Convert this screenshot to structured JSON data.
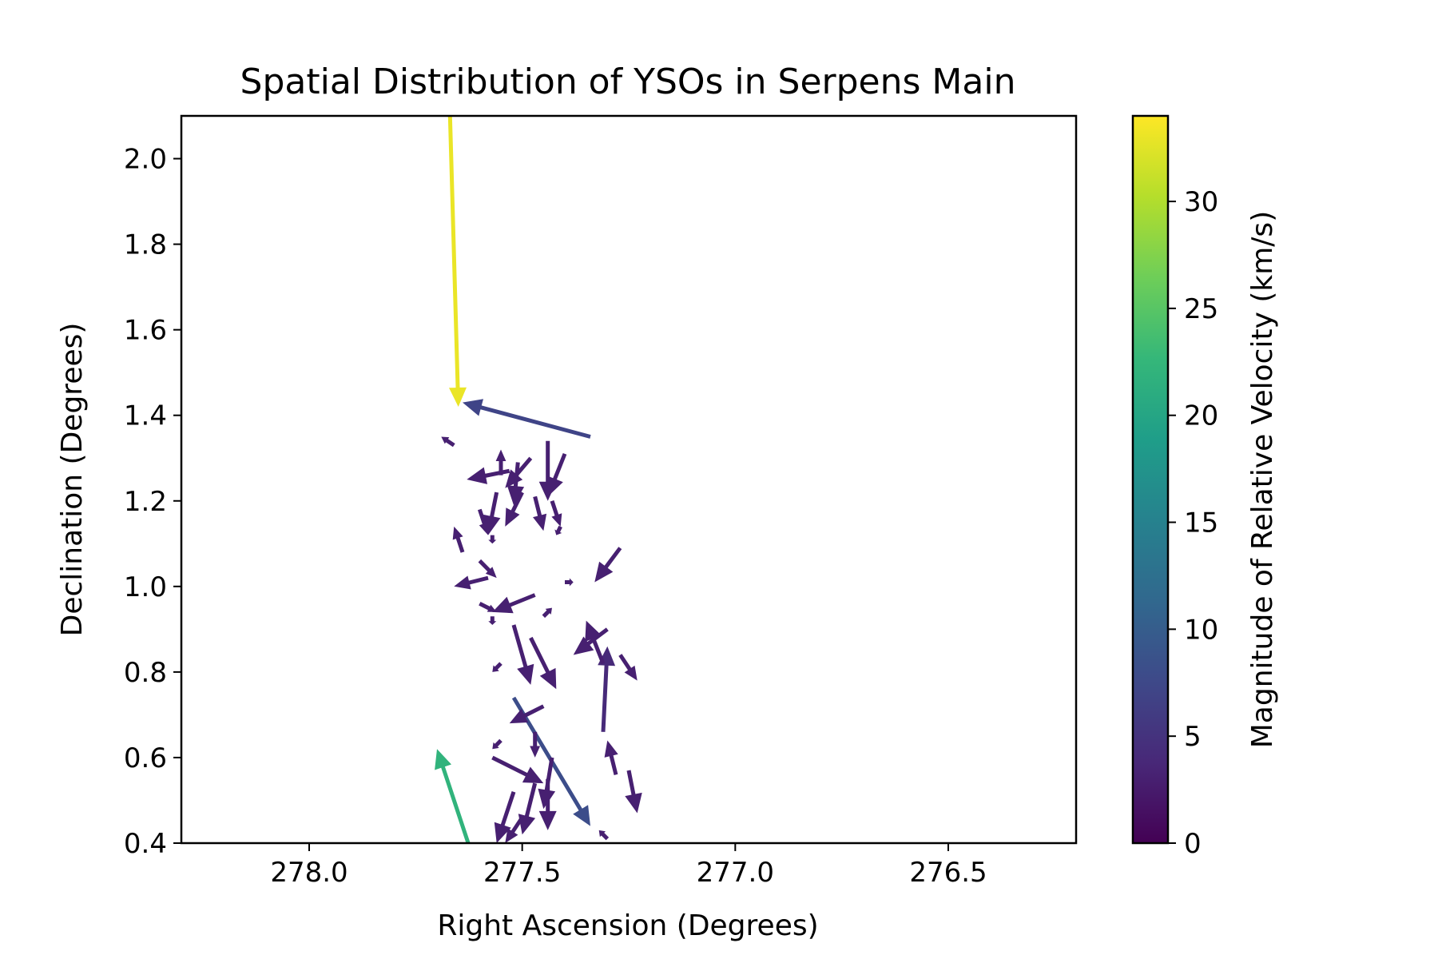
{
  "chart_data": {
    "type": "quiver",
    "title": "Spatial Distribution of YSOs in Serpens Main",
    "xlabel": "Right Ascension (Degrees)",
    "ylabel": "Declination (Degrees)",
    "xlim": [
      278.3,
      276.2
    ],
    "ylim": [
      0.4,
      2.1
    ],
    "x_inverted": true,
    "xticks": [
      "278.0",
      "277.5",
      "277.0",
      "276.5"
    ],
    "xtick_values": [
      278.0,
      277.5,
      277.0,
      276.5
    ],
    "yticks": [
      "0.4",
      "0.6",
      "0.8",
      "1.0",
      "1.2",
      "1.4",
      "1.6",
      "1.8",
      "2.0"
    ],
    "ytick_values": [
      0.4,
      0.6,
      0.8,
      1.0,
      1.2,
      1.4,
      1.6,
      1.8,
      2.0
    ],
    "grid": false,
    "colorbar": {
      "label": "Magnitude of Relative Velocity (km/s)",
      "colormap": "viridis",
      "range": [
        0,
        34
      ],
      "ticks": [
        "0",
        "5",
        "10",
        "15",
        "20",
        "25",
        "30"
      ],
      "tick_values": [
        0,
        5,
        10,
        15,
        20,
        25,
        30
      ],
      "stops": [
        "#440154",
        "#482878",
        "#3e4989",
        "#31688e",
        "#26828e",
        "#1f9e89",
        "#35b779",
        "#6ece58",
        "#b5de2b",
        "#fde725"
      ]
    },
    "arrows": [
      {
        "x": 277.67,
        "y": 2.12,
        "dx": -0.02,
        "dy": -0.7,
        "mag": 33
      },
      {
        "x": 277.34,
        "y": 1.35,
        "dx": 0.3,
        "dy": 0.08,
        "mag": 7
      },
      {
        "x": 277.52,
        "y": 0.74,
        "dx": -0.18,
        "dy": -0.3,
        "mag": 8
      },
      {
        "x": 277.62,
        "y": 0.38,
        "dx": 0.08,
        "dy": 0.24,
        "mag": 22
      },
      {
        "x": 277.31,
        "y": 0.66,
        "dx": -0.01,
        "dy": 0.2,
        "mag": 4
      },
      {
        "x": 277.66,
        "y": 1.33,
        "dx": 0.03,
        "dy": 0.02,
        "mag": 3
      },
      {
        "x": 277.48,
        "y": 1.3,
        "dx": 0.06,
        "dy": -0.07,
        "mag": 3
      },
      {
        "x": 277.53,
        "y": 1.27,
        "dx": 0.1,
        "dy": -0.02,
        "mag": 3
      },
      {
        "x": 277.44,
        "y": 1.34,
        "dx": 0.0,
        "dy": -0.14,
        "mag": 3
      },
      {
        "x": 277.4,
        "y": 1.31,
        "dx": 0.04,
        "dy": -0.1,
        "mag": 3
      },
      {
        "x": 277.5,
        "y": 1.22,
        "dx": 0.04,
        "dy": -0.08,
        "mag": 3
      },
      {
        "x": 277.47,
        "y": 1.21,
        "dx": -0.02,
        "dy": -0.08,
        "mag": 3
      },
      {
        "x": 277.56,
        "y": 1.22,
        "dx": 0.02,
        "dy": -0.1,
        "mag": 3
      },
      {
        "x": 277.51,
        "y": 1.29,
        "dx": 0.01,
        "dy": -0.1,
        "mag": 3
      },
      {
        "x": 277.55,
        "y": 1.26,
        "dx": 0.0,
        "dy": 0.06,
        "mag": 3
      },
      {
        "x": 277.43,
        "y": 1.2,
        "dx": -0.02,
        "dy": -0.06,
        "mag": 3
      },
      {
        "x": 277.41,
        "y": 1.14,
        "dx": 0.01,
        "dy": -0.02,
        "mag": 3
      },
      {
        "x": 277.64,
        "y": 1.08,
        "dx": 0.02,
        "dy": 0.06,
        "mag": 3
      },
      {
        "x": 277.6,
        "y": 1.18,
        "dx": -0.02,
        "dy": -0.06,
        "mag": 3
      },
      {
        "x": 277.57,
        "y": 1.12,
        "dx": 0.0,
        "dy": -0.02,
        "mag": 3
      },
      {
        "x": 277.27,
        "y": 1.09,
        "dx": 0.06,
        "dy": -0.08,
        "mag": 3
      },
      {
        "x": 277.6,
        "y": 1.06,
        "dx": -0.04,
        "dy": -0.04,
        "mag": 3
      },
      {
        "x": 277.58,
        "y": 1.02,
        "dx": 0.08,
        "dy": -0.02,
        "mag": 3
      },
      {
        "x": 277.4,
        "y": 1.01,
        "dx": -0.02,
        "dy": 0.0,
        "mag": 3
      },
      {
        "x": 277.47,
        "y": 0.98,
        "dx": 0.1,
        "dy": -0.04,
        "mag": 3
      },
      {
        "x": 277.6,
        "y": 0.96,
        "dx": -0.04,
        "dy": -0.02,
        "mag": 3
      },
      {
        "x": 277.57,
        "y": 0.93,
        "dx": 0.0,
        "dy": -0.02,
        "mag": 3
      },
      {
        "x": 277.45,
        "y": 0.93,
        "dx": -0.02,
        "dy": 0.02,
        "mag": 3
      },
      {
        "x": 277.3,
        "y": 0.9,
        "dx": 0.08,
        "dy": -0.06,
        "mag": 3
      },
      {
        "x": 277.52,
        "y": 0.91,
        "dx": -0.04,
        "dy": -0.14,
        "mag": 3
      },
      {
        "x": 277.48,
        "y": 0.88,
        "dx": -0.06,
        "dy": -0.12,
        "mag": 3
      },
      {
        "x": 277.55,
        "y": 0.82,
        "dx": 0.02,
        "dy": -0.02,
        "mag": 3
      },
      {
        "x": 277.31,
        "y": 0.82,
        "dx": 0.04,
        "dy": 0.1,
        "mag": 3
      },
      {
        "x": 277.27,
        "y": 0.84,
        "dx": -0.04,
        "dy": -0.06,
        "mag": 3
      },
      {
        "x": 277.45,
        "y": 0.72,
        "dx": 0.08,
        "dy": -0.04,
        "mag": 3
      },
      {
        "x": 277.55,
        "y": 0.64,
        "dx": 0.02,
        "dy": -0.02,
        "mag": 3
      },
      {
        "x": 277.47,
        "y": 0.66,
        "dx": 0.0,
        "dy": -0.06,
        "mag": 3
      },
      {
        "x": 277.43,
        "y": 0.6,
        "dx": 0.02,
        "dy": -0.12,
        "mag": 3
      },
      {
        "x": 277.57,
        "y": 0.6,
        "dx": -0.12,
        "dy": -0.06,
        "mag": 3
      },
      {
        "x": 277.28,
        "y": 0.56,
        "dx": 0.02,
        "dy": 0.08,
        "mag": 3
      },
      {
        "x": 277.25,
        "y": 0.57,
        "dx": -0.02,
        "dy": -0.1,
        "mag": 3
      },
      {
        "x": 277.52,
        "y": 0.52,
        "dx": 0.04,
        "dy": -0.12,
        "mag": 3
      },
      {
        "x": 277.47,
        "y": 0.54,
        "dx": 0.03,
        "dy": -0.12,
        "mag": 3
      },
      {
        "x": 277.44,
        "y": 0.55,
        "dx": 0.0,
        "dy": -0.12,
        "mag": 3
      },
      {
        "x": 277.5,
        "y": 0.46,
        "dx": 0.04,
        "dy": -0.06,
        "mag": 3
      },
      {
        "x": 277.3,
        "y": 0.41,
        "dx": 0.02,
        "dy": 0.02,
        "mag": 3
      }
    ]
  }
}
